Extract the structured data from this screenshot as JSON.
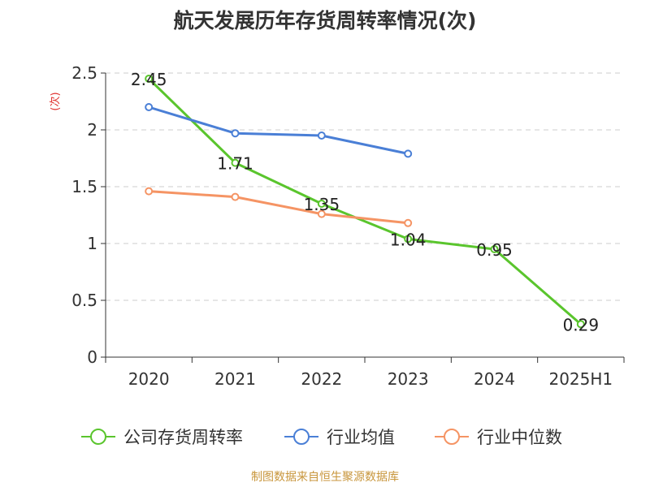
{
  "chart_data": {
    "type": "line",
    "title": "航天发展历年存货周转率情况(次)",
    "ylabel": "(次)",
    "xlabel": "",
    "categories": [
      "2020",
      "2021",
      "2022",
      "2023",
      "2024",
      "2025H1"
    ],
    "ylim": [
      0,
      2.5
    ],
    "yticks": [
      0,
      0.5,
      1,
      1.5,
      2,
      2.5
    ],
    "ytick_labels": [
      "0",
      "0.5",
      "1",
      "1.5",
      "2",
      "2.5"
    ],
    "grid": true,
    "legend_position": "bottom",
    "series": [
      {
        "name": "公司存货周转率",
        "color": "#5ac52d",
        "values": [
          2.45,
          1.71,
          1.35,
          1.04,
          0.95,
          0.29
        ],
        "data_labels": [
          "2.45",
          "1.71",
          "1.35",
          "1.04",
          "0.95",
          "0.29"
        ]
      },
      {
        "name": "行业均值",
        "color": "#4a7fd6",
        "values": [
          2.2,
          1.97,
          1.95,
          1.79,
          null,
          null
        ]
      },
      {
        "name": "行业中位数",
        "color": "#f59464",
        "values": [
          1.46,
          1.41,
          1.26,
          1.18,
          null,
          null
        ]
      }
    ]
  },
  "footer": {
    "source": "制图数据来自恒生聚源数据库"
  }
}
